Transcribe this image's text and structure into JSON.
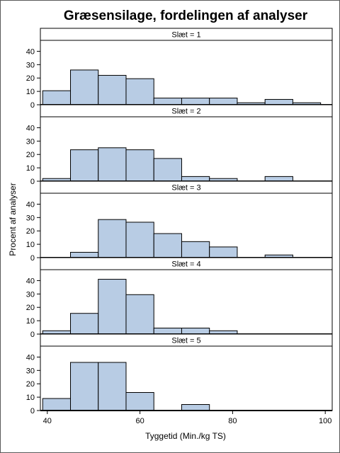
{
  "chart_data": {
    "type": "bar",
    "title": "Græsensilage, fordelingen af analyser",
    "xlabel": "Tyggetid (Min./kg TS)",
    "ylabel": "Procent af analyser",
    "xlim": [
      38.5,
      101.5
    ],
    "ylim": [
      0,
      45
    ],
    "x_ticks": [
      40,
      60,
      80,
      100
    ],
    "y_ticks": [
      0,
      10,
      20,
      30,
      40
    ],
    "bin_edges": [
      39,
      45,
      51,
      57,
      63,
      69,
      75,
      81,
      87,
      93,
      99
    ],
    "bar_color": "#b8cce4",
    "panels": [
      {
        "label": "Slæt = 1",
        "values": [
          10.5,
          26,
          22,
          19.5,
          5,
          5,
          5,
          1.5,
          4,
          1.5
        ]
      },
      {
        "label": "Slæt = 2",
        "values": [
          2,
          23.5,
          25,
          23.5,
          17,
          3.5,
          2,
          0,
          3.5,
          0
        ]
      },
      {
        "label": "Slæt = 3",
        "values": [
          0,
          4,
          28.5,
          26.5,
          18,
          12,
          8,
          0,
          2,
          0
        ]
      },
      {
        "label": "Slæt = 4",
        "values": [
          2.5,
          15.5,
          41,
          29.5,
          4.5,
          4.5,
          2.5,
          0,
          0,
          0
        ]
      },
      {
        "label": "Slæt = 5",
        "values": [
          9,
          36,
          36,
          13.5,
          0,
          4.5,
          0,
          0,
          0,
          0
        ]
      }
    ]
  }
}
